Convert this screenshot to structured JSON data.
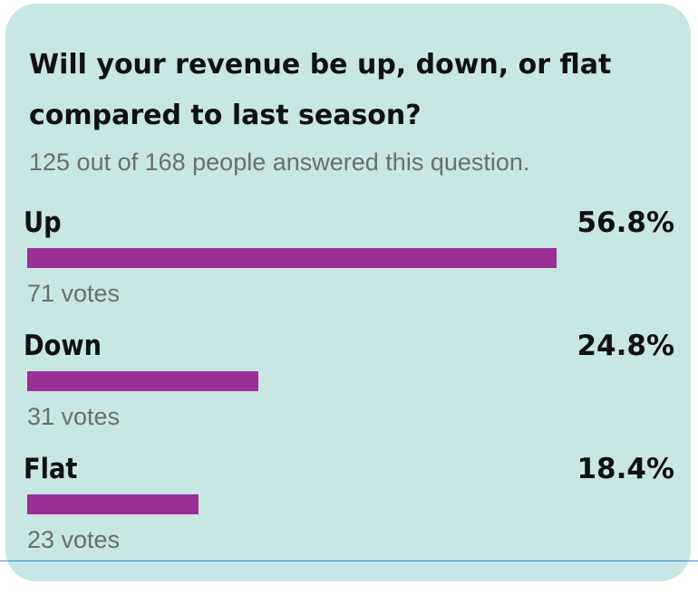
{
  "title": "Will your revenue be up, down, or flat compared to last season?",
  "subtitle": "125 out of 168 people answered this question.",
  "colors": {
    "card_background": "#c8e6e4",
    "bar": "#9b2f96",
    "divider": "#3e8fd1"
  },
  "options": [
    {
      "label": "Up",
      "percent_label": "56.8%",
      "votes_label": "71 votes"
    },
    {
      "label": "Down",
      "percent_label": "24.8%",
      "votes_label": "31 votes"
    },
    {
      "label": "Flat",
      "percent_label": "18.4%",
      "votes_label": "23 votes"
    }
  ],
  "chart_data": {
    "type": "bar",
    "orientation": "horizontal",
    "title": "Will your revenue be up, down, or flat compared to last season?",
    "subtitle": "125 out of 168 people answered this question.",
    "categories": [
      "Up",
      "Down",
      "Flat"
    ],
    "values": [
      56.8,
      24.8,
      18.4
    ],
    "votes": [
      71,
      31,
      23
    ],
    "answered": 125,
    "total": 168,
    "xlim": [
      0,
      70
    ],
    "grid": false
  }
}
